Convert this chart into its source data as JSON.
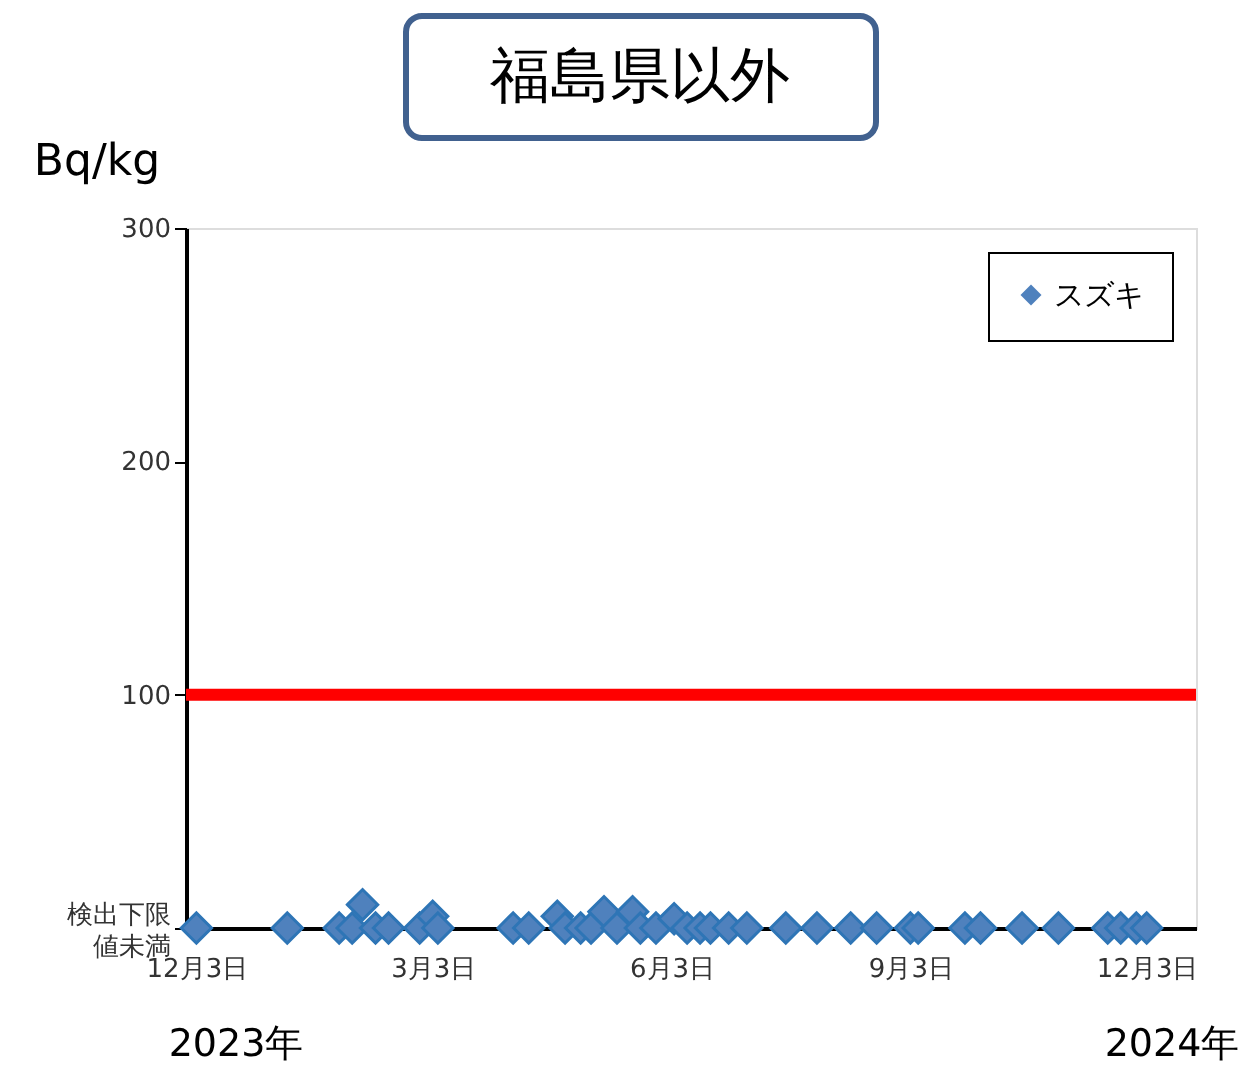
{
  "chart_data": {
    "type": "scatter",
    "title": "福島県以外",
    "ylabel": "Bq/kg",
    "x": [
      "2023-12-03",
      "2024-01-07",
      "2024-01-27",
      "2024-02-01",
      "2024-02-05",
      "2024-02-10",
      "2024-02-15",
      "2024-02-27",
      "2024-03-03",
      "2024-03-05",
      "2024-04-03",
      "2024-04-09",
      "2024-04-20",
      "2024-04-23",
      "2024-04-29",
      "2024-05-03",
      "2024-05-08",
      "2024-05-13",
      "2024-05-19",
      "2024-05-22",
      "2024-05-28",
      "2024-06-04",
      "2024-06-09",
      "2024-06-14",
      "2024-06-18",
      "2024-06-25",
      "2024-07-02",
      "2024-07-17",
      "2024-07-29",
      "2024-08-11",
      "2024-08-21",
      "2024-09-03",
      "2024-09-06",
      "2024-09-24",
      "2024-09-30",
      "2024-10-16",
      "2024-10-30",
      "2024-11-18",
      "2024-11-23",
      "2024-11-29",
      "2024-12-03"
    ],
    "series": [
      {
        "name": "スズキ",
        "color": "#4f81bd",
        "values": [
          0,
          0,
          0,
          0,
          10,
          0,
          0,
          0,
          5,
          0,
          0,
          0,
          5,
          0,
          0,
          0,
          7,
          0,
          7,
          0,
          0,
          4,
          0,
          0,
          0,
          0,
          0,
          0,
          0,
          0,
          0,
          0,
          0,
          0,
          0,
          0,
          0,
          0,
          0,
          0,
          0
        ]
      }
    ],
    "xlim": [
      "2023-11-29",
      "2024-12-22"
    ],
    "xticks": [
      {
        "value": "2023-12-03",
        "label": "12月3日"
      },
      {
        "value": "2024-03-03",
        "label": "3月3日"
      },
      {
        "value": "2024-06-03",
        "label": "6月3日"
      },
      {
        "value": "2024-09-03",
        "label": "9月3日"
      },
      {
        "value": "2024-12-03",
        "label": "12月3日"
      }
    ],
    "ylim": [
      0,
      300
    ],
    "yticks": [
      {
        "value": 0,
        "label": "検出下限値未満"
      },
      100,
      200,
      300
    ],
    "ref_lines": [
      {
        "axis": "y",
        "value": 100,
        "color": "#ff0000"
      }
    ],
    "annotations": [
      "2023年",
      "2024年"
    ],
    "marker": "diamond",
    "legend": "top right",
    "grid": false
  }
}
